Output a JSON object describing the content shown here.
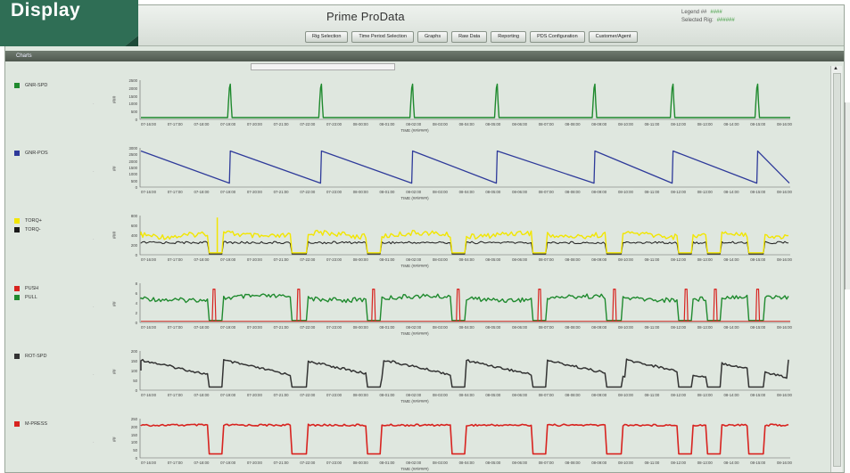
{
  "overlay_label": "Display",
  "app": {
    "title": "Prime ProData"
  },
  "legend_info": [
    {
      "label": "Legend ##",
      "value": "####"
    },
    {
      "label": "Selected Rig:",
      "value": "######"
    }
  ],
  "nav_buttons": [
    "Rig Selection",
    "Time Period Selection",
    "Graphs",
    "Raw Data",
    "Reporting",
    "PDS Configuration",
    "Customer/Agent"
  ],
  "charts_bar_label": "Charts",
  "time_axis_label": "TIME (##/####)",
  "time_ticks": [
    "07-16:00",
    "07-17:00",
    "07-18:00",
    "07-19:00",
    "07-20:00",
    "07-21:00",
    "07-22:00",
    "07-23:00",
    "08-00:00",
    "08-01:00",
    "08-02:00",
    "08-03:00",
    "08-04:00",
    "08-05:00",
    "08-06:00",
    "08-07:00",
    "08-08:00",
    "08-09:00",
    "08-10:00",
    "08-11:00",
    "08-12:00",
    "08-13:00",
    "08-14:00",
    "08-15:00",
    "08-16:00"
  ],
  "colors": {
    "green": "#1f8a2e",
    "blue": "#2e3a9a",
    "yellow": "#f2e600",
    "black": "#1a1a1a",
    "red": "#d8231f",
    "dark": "#333333",
    "tab": "#2f6e55"
  },
  "charts": [
    {
      "id": "c1",
      "legend": [
        {
          "name": "GNR-SPD",
          "color": "#1f8a2e"
        }
      ],
      "ylabel": "###",
      "yticks": [
        "2500",
        "2000",
        "1500",
        "1000",
        "500",
        "0"
      ]
    },
    {
      "id": "c2",
      "legend": [
        {
          "name": "GNR-POS",
          "color": "#2e3a9a"
        }
      ],
      "ylabel": "##",
      "yticks": [
        "3000",
        "2500",
        "2000",
        "1500",
        "1000",
        "500",
        "0"
      ]
    },
    {
      "id": "c3",
      "legend": [
        {
          "name": "TORQ+",
          "color": "#f2e600"
        },
        {
          "name": "TORQ-",
          "color": "#1a1a1a"
        }
      ],
      "ylabel": "###",
      "yticks": [
        "800",
        "600",
        "400",
        "200",
        "0"
      ]
    },
    {
      "id": "c4",
      "legend": [
        {
          "name": "PUSH",
          "color": "#d8231f"
        },
        {
          "name": "PULL",
          "color": "#1f8a2e"
        }
      ],
      "ylabel": "##",
      "yticks": [
        "8",
        "6",
        "4",
        "2",
        "0"
      ]
    },
    {
      "id": "c5",
      "legend": [
        {
          "name": "ROT-SPD",
          "color": "#333333"
        }
      ],
      "ylabel": "##",
      "yticks": [
        "200",
        "150",
        "100",
        "50",
        "0"
      ]
    },
    {
      "id": "c6",
      "legend": [
        {
          "name": "M-PRESS",
          "color": "#d8231f"
        }
      ],
      "ylabel": "##",
      "yticks": [
        "250",
        "200",
        "150",
        "100",
        "50",
        "0"
      ]
    }
  ]
}
